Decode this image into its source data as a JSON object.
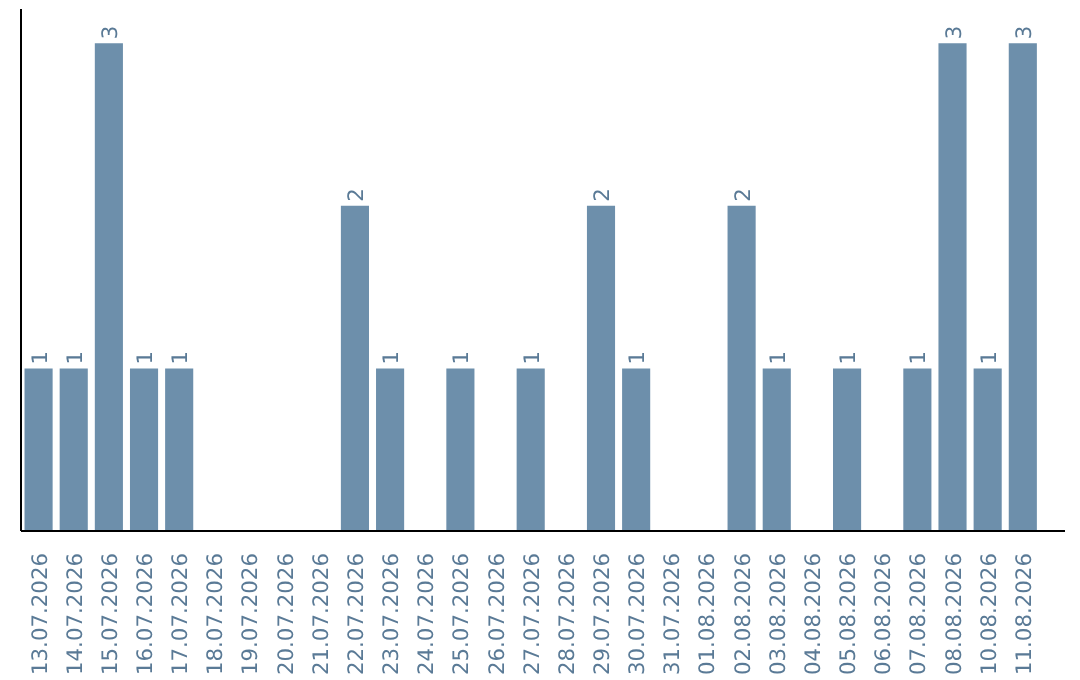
{
  "chart_data": {
    "type": "bar",
    "categories": [
      "13.07.2026",
      "14.07.2026",
      "15.07.2026",
      "16.07.2026",
      "17.07.2026",
      "18.07.2026",
      "19.07.2026",
      "20.07.2026",
      "21.07.2026",
      "22.07.2026",
      "23.07.2026",
      "24.07.2026",
      "25.07.2026",
      "26.07.2026",
      "27.07.2026",
      "28.07.2026",
      "29.07.2026",
      "30.07.2026",
      "31.07.2026",
      "01.08.2026",
      "02.08.2026",
      "03.08.2026",
      "04.08.2026",
      "05.08.2026",
      "06.08.2026",
      "07.08.2026",
      "08.08.2026",
      "10.08.2026",
      "11.08.2026"
    ],
    "values": [
      1,
      1,
      3,
      1,
      1,
      0,
      0,
      0,
      0,
      2,
      1,
      0,
      1,
      0,
      1,
      0,
      2,
      1,
      0,
      0,
      2,
      1,
      0,
      1,
      0,
      1,
      3,
      1,
      3
    ],
    "value_labels": [
      "1",
      "1",
      "3",
      "1",
      "1",
      null,
      null,
      null,
      null,
      "2",
      "1",
      null,
      "1",
      null,
      "1",
      null,
      "2",
      "1",
      null,
      null,
      "2",
      "1",
      null,
      "1",
      null,
      "1",
      "3",
      "1",
      "3"
    ],
    "color": "#6d8fab",
    "grid": false,
    "tick_labels": "x"
  }
}
